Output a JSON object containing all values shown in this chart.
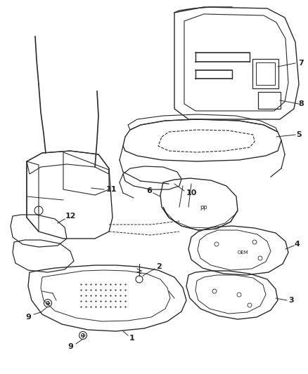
{
  "bg_color": "#ffffff",
  "line_color": "#2a2a2a",
  "label_color": "#222222",
  "fig_width": 4.38,
  "fig_height": 5.33,
  "dpi": 100
}
